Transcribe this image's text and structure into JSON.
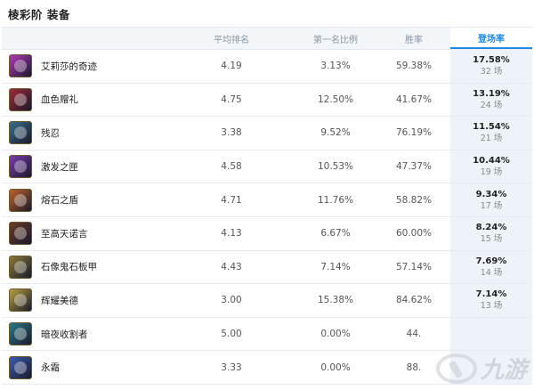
{
  "page": {
    "title": "棱彩阶 装备"
  },
  "columns": {
    "name": "",
    "avg_rank": "平均排名",
    "first_rate": "第一名比例",
    "win_rate": "胜率",
    "pick_rate": "登场率"
  },
  "colors": {
    "accent": "#1e88e5",
    "header_bg": "#f3f6f9",
    "active_col_bg": "#eef3fa"
  },
  "rows": [
    {
      "name": "艾莉莎的奇迹",
      "icon": "elisa-miracle-icon",
      "icon_color": "#b03ab8",
      "avg_rank": "4.19",
      "first_rate": "3.13%",
      "win_rate": "59.38%",
      "pick_rate": "17.58%",
      "pick_count": "32 场"
    },
    {
      "name": "血色赠礼",
      "icon": "blood-gift-icon",
      "icon_color": "#a02a3a",
      "avg_rank": "4.75",
      "first_rate": "12.50%",
      "win_rate": "41.67%",
      "pick_rate": "13.19%",
      "pick_count": "24 场"
    },
    {
      "name": "残忍",
      "icon": "cruelty-icon",
      "icon_color": "#3a6d8c",
      "avg_rank": "3.38",
      "first_rate": "9.52%",
      "win_rate": "76.19%",
      "pick_rate": "11.54%",
      "pick_count": "21 场"
    },
    {
      "name": "激发之匣",
      "icon": "spark-box-icon",
      "icon_color": "#7b3ab0",
      "avg_rank": "4.58",
      "first_rate": "10.53%",
      "win_rate": "47.37%",
      "pick_rate": "10.44%",
      "pick_count": "19 场"
    },
    {
      "name": "熔石之盾",
      "icon": "lava-shield-icon",
      "icon_color": "#c0612a",
      "avg_rank": "4.71",
      "first_rate": "11.76%",
      "win_rate": "58.82%",
      "pick_rate": "9.34%",
      "pick_count": "17 场"
    },
    {
      "name": "至高天诺言",
      "icon": "heaven-promise-icon",
      "icon_color": "#6a3a2a",
      "avg_rank": "4.13",
      "first_rate": "6.67%",
      "win_rate": "60.00%",
      "pick_rate": "8.24%",
      "pick_count": "15 场"
    },
    {
      "name": "石像鬼石板甲",
      "icon": "gargoyle-armor-icon",
      "icon_color": "#8a7a3a",
      "avg_rank": "4.43",
      "first_rate": "7.14%",
      "win_rate": "57.14%",
      "pick_rate": "7.69%",
      "pick_count": "14 场"
    },
    {
      "name": "辉耀美德",
      "icon": "radiant-virtue-icon",
      "icon_color": "#b8a040",
      "avg_rank": "3.00",
      "first_rate": "15.38%",
      "win_rate": "84.62%",
      "pick_rate": "7.14%",
      "pick_count": "13 场"
    },
    {
      "name": "暗夜收割者",
      "icon": "night-reaper-icon",
      "icon_color": "#2a7a8a",
      "avg_rank": "5.00",
      "first_rate": "0.00%",
      "win_rate": "44.",
      "pick_rate": "",
      "pick_count": ""
    },
    {
      "name": "永霜",
      "icon": "everfrost-icon",
      "icon_color": "#3a5ab0",
      "avg_rank": "3.33",
      "first_rate": "0.00%",
      "win_rate": "88.",
      "pick_rate": "",
      "pick_count": ""
    }
  ],
  "watermark": {
    "text": "九游"
  }
}
